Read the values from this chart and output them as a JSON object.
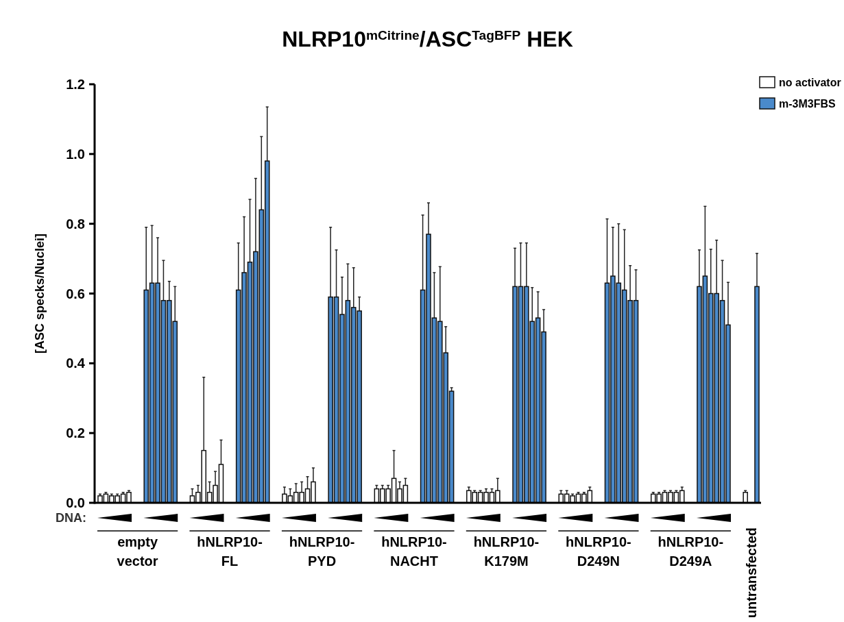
{
  "chart_data": {
    "type": "bar",
    "title": "NLRP10$^{mCitrine}$/ASC$^{TagBFP}$ HEK",
    "ylabel": "[ASC specks/Nuclei]",
    "annotations": [
      "DNA:",
      "empty vector",
      "hNLRP10-FL",
      "hNLRP10-PYD",
      "hNLRP10-NACHT",
      "hNLRP10-K179M",
      "hNLRP10-D249N",
      "hNLRP10-D249A",
      "untransfected"
    ],
    "categories": [
      null,
      null,
      null,
      null,
      null,
      null,
      null,
      null,
      null,
      null,
      null,
      null,
      null,
      null,
      null,
      null,
      null,
      null,
      null,
      null,
      null,
      null,
      null,
      null,
      null,
      null,
      null,
      null,
      null,
      null,
      null,
      null,
      null,
      null,
      null,
      null,
      null,
      null,
      null,
      null,
      null,
      null,
      null,
      null,
      null,
      null,
      null,
      null,
      null,
      null,
      null,
      null,
      null,
      null,
      null,
      null,
      null,
      null,
      null,
      null,
      null,
      null,
      null,
      null,
      null,
      null,
      null,
      null,
      null,
      null,
      null,
      null,
      null,
      null,
      null,
      null,
      null,
      null,
      null,
      null,
      null,
      null,
      null,
      null,
      null,
      null,
      null,
      null,
      null,
      null,
      null,
      null,
      null,
      null,
      null,
      null,
      null,
      null,
      null,
      null,
      null,
      null,
      null,
      null,
      null,
      null,
      null,
      null,
      null,
      null,
      null,
      null,
      null,
      null,
      null
    ],
    "ylim": [
      0,
      1.2
    ],
    "yticks": [
      {
        "value": 0,
        "label": "0.0"
      },
      {
        "value": 0.2,
        "label": "0.2"
      },
      {
        "value": 0.4,
        "label": "0.4"
      },
      {
        "value": 0.6,
        "label": "0.6"
      },
      {
        "value": 0.8,
        "label": "0.8"
      },
      {
        "value": 1,
        "label": "1.0"
      },
      {
        "value": 1.2,
        "label": "1.2"
      }
    ],
    "legend": "top right",
    "grid": false,
    "series": [
      {
        "name": "no activator",
        "color": "#ffffff",
        "values": [
          0.02,
          0.025,
          0.02,
          0.02,
          0.025,
          0.03,
          null,
          null,
          null,
          null,
          null,
          null,
          null,
          null,
          null,
          null,
          0.02,
          0.03,
          0.15,
          0.03,
          0.05,
          0.11,
          null,
          null,
          null,
          null,
          null,
          null,
          null,
          null,
          null,
          null,
          0.025,
          0.02,
          0.03,
          0.03,
          0.04,
          0.06,
          null,
          null,
          null,
          null,
          null,
          null,
          null,
          null,
          null,
          null,
          0.04,
          0.04,
          0.04,
          0.07,
          0.04,
          0.05,
          null,
          null,
          null,
          null,
          null,
          null,
          null,
          null,
          null,
          null,
          0.035,
          0.03,
          0.03,
          0.03,
          0.03,
          0.035,
          null,
          null,
          null,
          null,
          null,
          null,
          null,
          null,
          null,
          null,
          0.025,
          0.025,
          0.02,
          0.025,
          0.025,
          0.035,
          null,
          null,
          null,
          null,
          null,
          null,
          null,
          null,
          null,
          null,
          0.025,
          0.025,
          0.03,
          0.03,
          0.03,
          0.035,
          null,
          null,
          null,
          null,
          null,
          null,
          null,
          null,
          null,
          null,
          0.03,
          null,
          null
        ],
        "errors": [
          0.005,
          0.005,
          0.005,
          0.005,
          0.005,
          0.005,
          null,
          null,
          null,
          null,
          null,
          null,
          null,
          null,
          null,
          null,
          0.02,
          0.02,
          [
            0,
            0.36
          ],
          0.03,
          0.04,
          0.07,
          null,
          null,
          null,
          null,
          null,
          null,
          null,
          null,
          null,
          null,
          0.02,
          0.02,
          0.025,
          0.03,
          0.035,
          0.04,
          null,
          null,
          null,
          null,
          null,
          null,
          null,
          null,
          null,
          null,
          0.01,
          0.01,
          0.01,
          [
            0,
            0.15
          ],
          0.02,
          0.02,
          null,
          null,
          null,
          null,
          null,
          null,
          null,
          null,
          null,
          null,
          0.01,
          0.005,
          0.005,
          0.01,
          0.01,
          0.035,
          null,
          null,
          null,
          null,
          null,
          null,
          null,
          null,
          null,
          null,
          0.01,
          0.01,
          0.005,
          0.005,
          0.005,
          0.01,
          null,
          null,
          null,
          null,
          null,
          null,
          null,
          null,
          null,
          null,
          0.005,
          0.005,
          0.005,
          0.005,
          0.005,
          0.01,
          null,
          null,
          null,
          null,
          null,
          null,
          null,
          null,
          null,
          null,
          0.005,
          null,
          null
        ]
      },
      {
        "name": "m-3M3FBS",
        "color": "#4a8acb",
        "values": [
          null,
          null,
          null,
          null,
          null,
          null,
          null,
          null,
          0.61,
          0.63,
          0.63,
          0.58,
          0.58,
          0.52,
          null,
          null,
          null,
          null,
          null,
          null,
          null,
          null,
          null,
          null,
          0.61,
          0.66,
          0.69,
          0.72,
          0.84,
          0.98,
          null,
          null,
          null,
          null,
          null,
          null,
          null,
          null,
          null,
          null,
          0.59,
          0.59,
          0.54,
          0.58,
          0.56,
          0.55,
          null,
          null,
          null,
          null,
          null,
          null,
          null,
          null,
          null,
          null,
          0.61,
          0.77,
          0.53,
          0.52,
          0.43,
          0.32,
          null,
          null,
          null,
          null,
          null,
          null,
          null,
          null,
          null,
          null,
          0.62,
          0.62,
          0.62,
          0.52,
          0.53,
          0.49,
          null,
          null,
          null,
          null,
          null,
          null,
          null,
          null,
          null,
          null,
          0.63,
          0.65,
          0.63,
          0.61,
          0.58,
          0.58,
          null,
          null,
          null,
          null,
          null,
          null,
          null,
          null,
          null,
          null,
          0.62,
          0.65,
          0.6,
          0.6,
          0.58,
          0.51,
          null,
          null,
          null,
          null,
          0.62
        ],
        "errors": [
          null,
          null,
          null,
          null,
          null,
          null,
          null,
          null,
          0.18,
          0.165,
          0.13,
          0.115,
          0.055,
          0.1,
          null,
          null,
          null,
          null,
          null,
          null,
          null,
          null,
          null,
          null,
          0.135,
          0.16,
          0.18,
          0.21,
          0.21,
          0.155,
          null,
          null,
          null,
          null,
          null,
          null,
          null,
          null,
          null,
          null,
          0.2,
          0.135,
          0.107,
          0.105,
          0.114,
          0.04,
          null,
          null,
          null,
          null,
          null,
          null,
          null,
          null,
          null,
          null,
          0.215,
          0.09,
          0.13,
          0.157,
          0.075,
          0.01,
          null,
          null,
          null,
          null,
          null,
          null,
          null,
          null,
          null,
          null,
          0.11,
          0.125,
          0.125,
          0.097,
          0.075,
          0.064,
          null,
          null,
          null,
          null,
          null,
          null,
          null,
          null,
          null,
          null,
          0.184,
          0.14,
          0.17,
          0.173,
          0.1,
          0.088,
          null,
          null,
          null,
          null,
          null,
          null,
          null,
          null,
          null,
          null,
          0.105,
          0.2,
          0.127,
          0.153,
          0.115,
          0.122,
          null,
          null,
          null,
          null,
          0.095
        ]
      }
    ]
  }
}
